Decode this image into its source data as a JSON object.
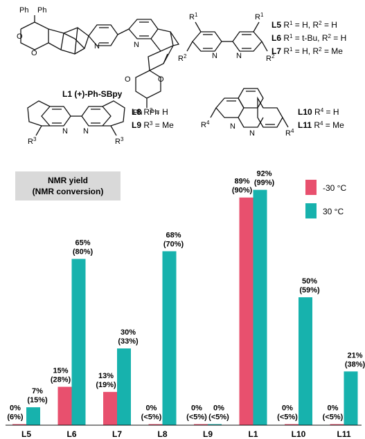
{
  "structures": {
    "L1": {
      "tag": "L1",
      "name": "(+)-Ph-SBpy",
      "ph_a": "Ph",
      "ph_b": "Ph",
      "ph_c": "Ph",
      "ph_d": "Ph",
      "o1": "O",
      "o2": "O",
      "o3": "O",
      "o4": "O",
      "n1": "N",
      "n2": "N"
    },
    "bpy": {
      "r1a": "R",
      "r1a_sup": "1",
      "r1b": "R",
      "r1b_sup": "1",
      "r2a": "R",
      "r2a_sup": "2",
      "r2b": "R",
      "r2b_sup": "2",
      "n1": "N",
      "n2": "N",
      "rows": [
        {
          "tag": "L5",
          "a": "R",
          "a_sup": "1",
          "a_val": " = H, ",
          "b": "R",
          "b_sup": "2",
          "b_val": " = H"
        },
        {
          "tag": "L6",
          "a": "R",
          "a_sup": "1",
          "a_val": " = t-Bu, ",
          "b": "R",
          "b_sup": "2",
          "b_val": " = H"
        },
        {
          "tag": "L7",
          "a": "R",
          "a_sup": "1",
          "a_val": " = H, ",
          "b": "R",
          "b_sup": "2",
          "b_val": " = Me"
        }
      ]
    },
    "cp": {
      "r3a": "R",
      "r3a_sup": "3",
      "r3b": "R",
      "r3b_sup": "3",
      "n1": "N",
      "n2": "N",
      "rows": [
        {
          "tag": "L8",
          "a": "R",
          "a_sup": "3",
          "a_val": " = H"
        },
        {
          "tag": "L9",
          "a": "R",
          "a_sup": "3",
          "a_val": " = Me"
        }
      ]
    },
    "phen": {
      "r4a": "R",
      "r4a_sup": "4",
      "r4b": "R",
      "r4b_sup": "4",
      "n1": "N",
      "n2": "N",
      "rows": [
        {
          "tag": "L10",
          "a": "R",
          "a_sup": "4",
          "a_val": " = H"
        },
        {
          "tag": "L11",
          "a": "R",
          "a_sup": "4",
          "a_val": " = Me"
        }
      ]
    }
  },
  "chart_data": {
    "type": "bar",
    "note_line1": "NMR yield",
    "note_line2": "(NMR conversion)",
    "categories": [
      "L5",
      "L6",
      "L7",
      "L8",
      "L9",
      "L1",
      "L10",
      "L11"
    ],
    "series": [
      {
        "name": "-30 °C",
        "color": "#e8506e",
        "values": [
          0,
          15,
          13,
          0,
          0,
          89,
          0,
          0
        ],
        "yield_labels": [
          "0%",
          "15%",
          "13%",
          "0%",
          "0%",
          "89%",
          "0%",
          "0%"
        ],
        "conv_labels": [
          "(6%)",
          "(28%)",
          "(19%)",
          "(<5%)",
          "(<5%)",
          "(90%)",
          "(<5%)",
          "(<5%)"
        ]
      },
      {
        "name": "30 °C",
        "color": "#17b2ad",
        "values": [
          7,
          65,
          30,
          68,
          0,
          92,
          50,
          21
        ],
        "yield_labels": [
          "7%",
          "65%",
          "30%",
          "68%",
          "0%",
          "92%",
          "50%",
          "21%"
        ],
        "conv_labels": [
          "(15%)",
          "(80%)",
          "(33%)",
          "(70%)",
          "(<5%)",
          "(99%)",
          "(59%)",
          "(38%)"
        ]
      }
    ],
    "ylim": [
      0,
      100
    ],
    "grid": false,
    "legend": "top-right"
  }
}
